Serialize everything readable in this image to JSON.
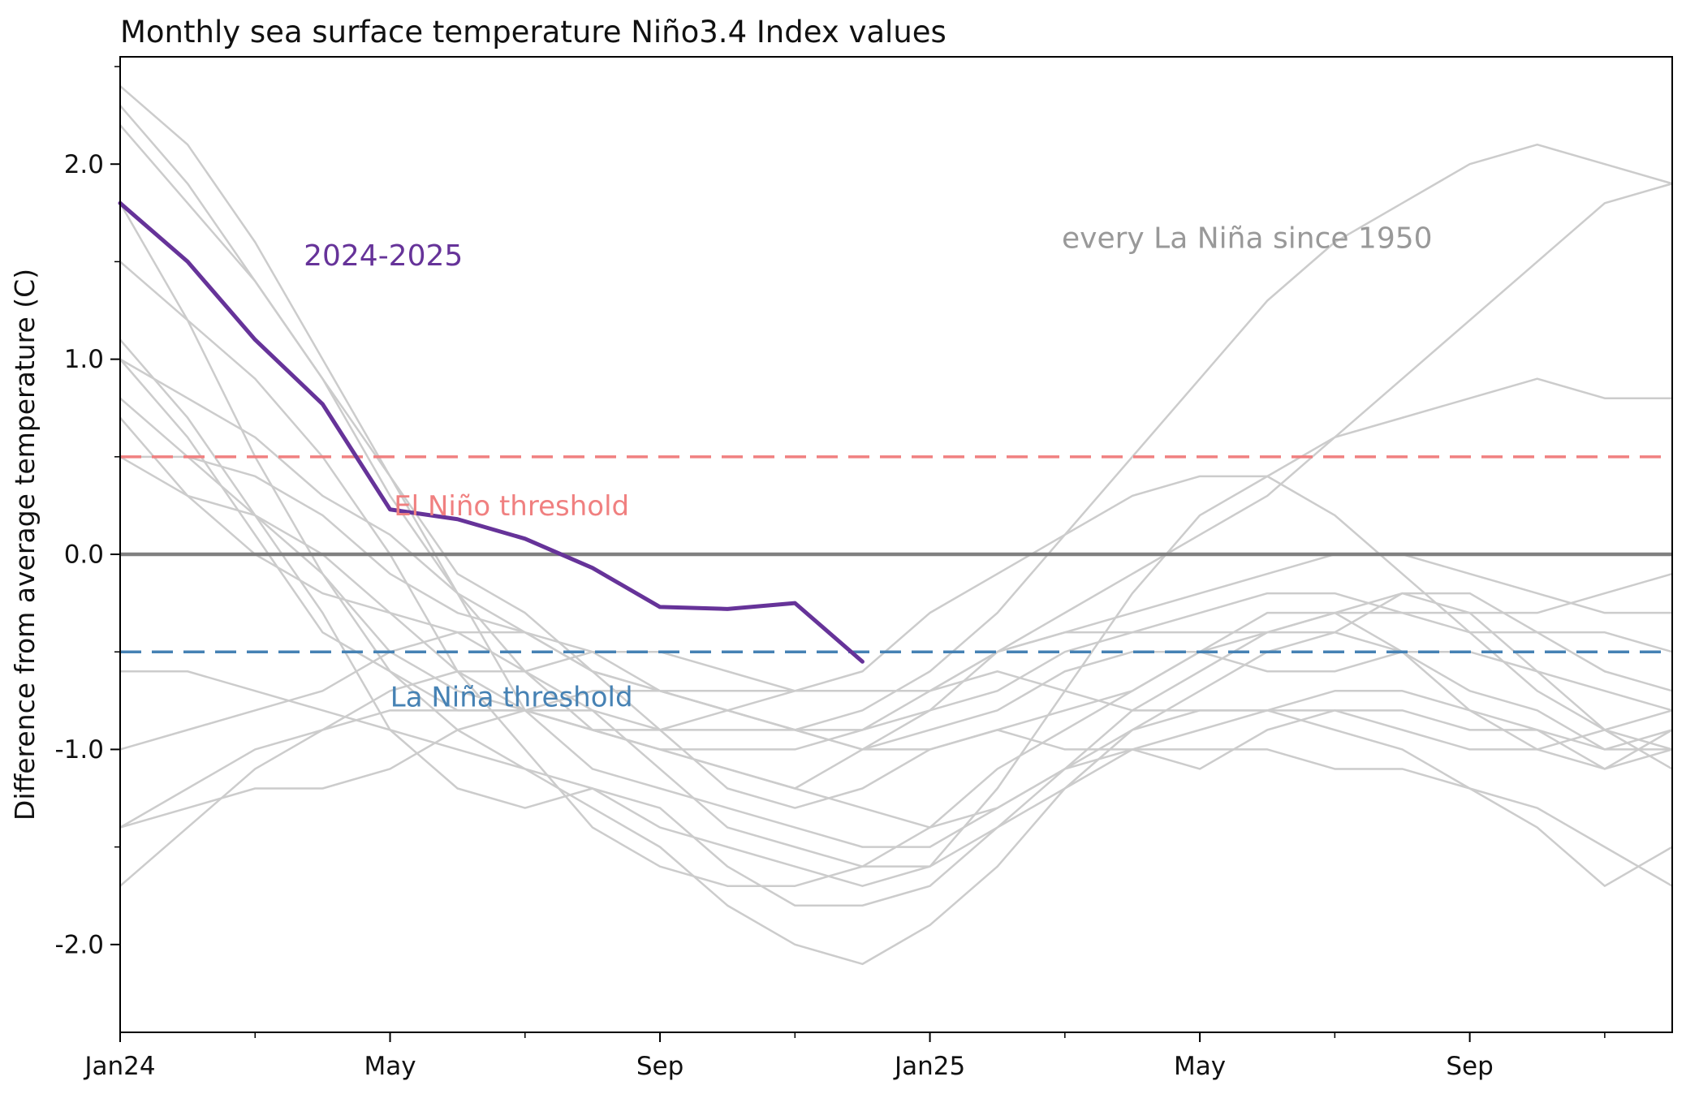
{
  "chart_data": {
    "type": "line",
    "title": "Monthly sea surface temperature Niño3.4 Index values",
    "ylabel": "Difference from average temperature (C)",
    "xlabel": "",
    "xlim": [
      0,
      23
    ],
    "ylim": [
      -2.45,
      2.55
    ],
    "grid": false,
    "legend": "none (inline text annotations)",
    "x_major_ticks": [
      {
        "pos": 0,
        "label": "Jan24"
      },
      {
        "pos": 4,
        "label": "May"
      },
      {
        "pos": 8,
        "label": "Sep"
      },
      {
        "pos": 12,
        "label": "Jan25"
      },
      {
        "pos": 16,
        "label": "May"
      },
      {
        "pos": 20,
        "label": "Sep"
      }
    ],
    "x_minor_ticks": [
      2,
      6,
      10,
      14,
      18,
      22
    ],
    "y_major_ticks": [
      {
        "pos": -2.0,
        "label": "-2.0"
      },
      {
        "pos": -1.0,
        "label": "-1.0"
      },
      {
        "pos": 0.0,
        "label": "0.0"
      },
      {
        "pos": 1.0,
        "label": "1.0"
      },
      {
        "pos": 2.0,
        "label": "2.0"
      }
    ],
    "y_minor_ticks": [
      -1.5,
      -0.5,
      0.5,
      1.5,
      2.5
    ],
    "reference_lines": [
      {
        "name": "zero-line",
        "value": 0.0,
        "color": "#808080",
        "style": "solid",
        "width": 4.5
      },
      {
        "name": "el-nino-threshold-line",
        "value": 0.5,
        "color": "#f08080",
        "style": "dashed",
        "width": 3.5
      },
      {
        "name": "la-nina-threshold-line",
        "value": -0.5,
        "color": "#4682b4",
        "style": "dashed",
        "width": 3.5
      }
    ],
    "annotations": [
      {
        "name": "label-2024-2025",
        "text": "2024-2025",
        "x": 3.9,
        "y": 1.48,
        "color": "#663399",
        "anchor": "middle",
        "size": 36
      },
      {
        "name": "label-every-la-nina",
        "text": "every La Niña since 1950",
        "x": 16.7,
        "y": 1.57,
        "color": "#999999",
        "anchor": "middle",
        "size": 36
      },
      {
        "name": "label-el-nino-threshold",
        "text": "El Niño threshold",
        "x": 5.8,
        "y": 0.2,
        "color": "#f08080",
        "anchor": "middle",
        "size": 34
      },
      {
        "name": "label-la-nina-threshold",
        "text": "La Niña threshold",
        "x": 5.8,
        "y": -0.78,
        "color": "#4682b4",
        "anchor": "middle",
        "size": 34
      }
    ],
    "highlight_series": {
      "name": "2024-2025",
      "color": "#663399",
      "width": 5,
      "x_start_month": 0,
      "values": [
        1.8,
        1.5,
        1.1,
        0.77,
        0.23,
        0.18,
        0.08,
        -0.07,
        -0.27,
        -0.28,
        -0.25,
        -0.55
      ]
    },
    "background_series": {
      "name": "every La Niña since 1950",
      "color": "#cccccc",
      "width": 2.5,
      "series": [
        [
          -1.4,
          -1.3,
          -1.2,
          -1.2,
          -1.1,
          -0.9,
          -0.8,
          -0.7,
          -0.7,
          -0.8,
          -0.9,
          -1.0,
          -0.9,
          -0.8,
          -0.6,
          -0.5,
          -0.5,
          -0.6,
          -0.6,
          -0.5,
          -0.5,
          -0.6,
          -0.7,
          -0.8
        ],
        [
          0.8,
          0.5,
          0.2,
          -0.1,
          -0.5,
          -0.7,
          -0.8,
          -0.9,
          -0.9,
          -0.8,
          -0.7,
          -0.7,
          -0.7,
          -0.6,
          -0.7,
          -0.8,
          -0.8,
          -0.8,
          -0.9,
          -1.0,
          -1.2,
          -1.4,
          -1.7,
          -1.5
        ],
        [
          1.0,
          0.6,
          0.1,
          -0.4,
          -0.6,
          -0.8,
          -0.8,
          -0.9,
          -1.0,
          -1.1,
          -1.2,
          -1.0,
          -0.8,
          -0.5,
          -0.3,
          -0.1,
          0.1,
          0.3,
          0.6,
          0.9,
          1.2,
          1.5,
          1.8,
          1.9
        ],
        [
          0.5,
          0.3,
          0.2,
          0.0,
          -0.3,
          -0.6,
          -0.8,
          -0.9,
          -1.0,
          -1.1,
          -1.2,
          -1.3,
          -1.4,
          -1.3,
          -1.1,
          -0.9,
          -0.8,
          -0.8,
          -0.8,
          -0.8,
          -0.9,
          -0.9,
          -1.0,
          -0.9
        ],
        [
          -1.4,
          -1.2,
          -1.0,
          -0.9,
          -0.8,
          -0.8,
          -0.8,
          -0.8,
          -0.9,
          -0.9,
          -0.9,
          -0.8,
          -0.6,
          -0.3,
          0.1,
          0.5,
          0.9,
          1.3,
          1.6,
          1.8,
          2.0,
          2.1,
          2.0,
          1.9
        ],
        [
          1.8,
          1.2,
          0.5,
          -0.1,
          -0.6,
          -0.9,
          -1.1,
          -1.3,
          -1.5,
          -1.8,
          -2.0,
          -2.1,
          -1.9,
          -1.6,
          -1.2,
          -1.0,
          -0.9,
          -0.8,
          -0.7,
          -0.7,
          -0.8,
          -0.9,
          -1.1,
          -0.9
        ],
        [
          -0.6,
          -0.6,
          -0.7,
          -0.8,
          -0.9,
          -1.0,
          -1.1,
          -1.2,
          -1.4,
          -1.5,
          -1.6,
          -1.7,
          -1.6,
          -1.2,
          -0.7,
          -0.2,
          0.2,
          0.4,
          0.6,
          0.7,
          0.8,
          0.9,
          0.8,
          0.8
        ],
        [
          2.3,
          1.9,
          1.4,
          0.9,
          0.3,
          -0.2,
          -0.6,
          -0.9,
          -1.0,
          -1.0,
          -1.0,
          -0.9,
          -0.7,
          -0.5,
          -0.4,
          -0.4,
          -0.4,
          -0.4,
          -0.3,
          -0.2,
          -0.3,
          -0.6,
          -0.9,
          -1.1
        ],
        [
          1.1,
          0.7,
          0.2,
          -0.3,
          -0.9,
          -1.2,
          -1.3,
          -1.2,
          -1.3,
          -1.6,
          -1.8,
          -1.8,
          -1.7,
          -1.4,
          -1.1,
          -0.8,
          -0.6,
          -0.4,
          -0.3,
          -0.3,
          -0.3,
          -0.3,
          -0.2,
          -0.1
        ],
        [
          1.0,
          0.8,
          0.6,
          0.3,
          0.1,
          -0.2,
          -0.4,
          -0.6,
          -0.7,
          -0.8,
          -0.9,
          -0.9,
          -0.8,
          -0.7,
          -0.5,
          -0.4,
          -0.3,
          -0.2,
          -0.2,
          -0.3,
          -0.4,
          -0.4,
          -0.4,
          -0.5
        ],
        [
          2.2,
          1.8,
          1.4,
          0.9,
          0.4,
          -0.2,
          -0.8,
          -1.1,
          -1.2,
          -1.3,
          -1.4,
          -1.5,
          -1.5,
          -1.3,
          -1.1,
          -1.0,
          -1.0,
          -1.0,
          -1.1,
          -1.1,
          -1.2,
          -1.3,
          -1.5,
          -1.7
        ],
        [
          -1.7,
          -1.4,
          -1.1,
          -0.9,
          -0.7,
          -0.6,
          -0.6,
          -0.5,
          -0.5,
          -0.6,
          -0.7,
          -0.7,
          -0.7,
          -0.5,
          -0.4,
          -0.3,
          -0.2,
          -0.1,
          0.0,
          0.0,
          -0.1,
          -0.2,
          -0.3,
          -0.3
        ],
        [
          0.7,
          0.3,
          0.0,
          -0.2,
          -0.3,
          -0.4,
          -0.6,
          -0.8,
          -1.1,
          -1.4,
          -1.5,
          -1.6,
          -1.6,
          -1.4,
          -1.2,
          -0.9,
          -0.7,
          -0.5,
          -0.4,
          -0.2,
          -0.2,
          -0.4,
          -0.6,
          -0.7
        ],
        [
          1.5,
          1.2,
          0.9,
          0.5,
          0.0,
          -0.6,
          -1.0,
          -1.4,
          -1.6,
          -1.7,
          -1.7,
          -1.6,
          -1.4,
          -1.1,
          -0.9,
          -0.7,
          -0.5,
          -0.3,
          -0.3,
          -0.5,
          -0.8,
          -1.0,
          -1.1,
          -1.0
        ],
        [
          2.4,
          2.1,
          1.6,
          1.0,
          0.4,
          -0.1,
          -0.3,
          -0.6,
          -0.7,
          -0.7,
          -0.7,
          -0.6,
          -0.3,
          -0.1,
          0.1,
          0.3,
          0.4,
          0.4,
          0.2,
          -0.1,
          -0.4,
          -0.7,
          -0.9,
          -1.0
        ],
        [
          0.5,
          0.5,
          0.4,
          0.2,
          -0.1,
          -0.3,
          -0.4,
          -0.6,
          -0.9,
          -1.2,
          -1.3,
          -1.2,
          -1.0,
          -0.9,
          -0.8,
          -0.7,
          -0.5,
          -0.4,
          -0.4,
          -0.5,
          -0.7,
          -0.8,
          -1.0,
          -1.0
        ],
        [
          -1.0,
          -0.9,
          -0.8,
          -0.7,
          -0.5,
          -0.4,
          -0.4,
          -0.5,
          -0.7,
          -0.8,
          -0.9,
          -1.0,
          -1.0,
          -0.9,
          -1.0,
          -1.0,
          -1.1,
          -0.9,
          -0.8,
          -0.9,
          -1.0,
          -1.0,
          -0.9,
          -0.8
        ]
      ]
    },
    "colors": {
      "highlight": "#663399",
      "history_lines": "#cccccc",
      "el_nino_threshold": "#f08080",
      "la_nina_threshold": "#4682b4",
      "zero_line": "#808080",
      "axis": "#000000",
      "background": "#ffffff"
    }
  }
}
